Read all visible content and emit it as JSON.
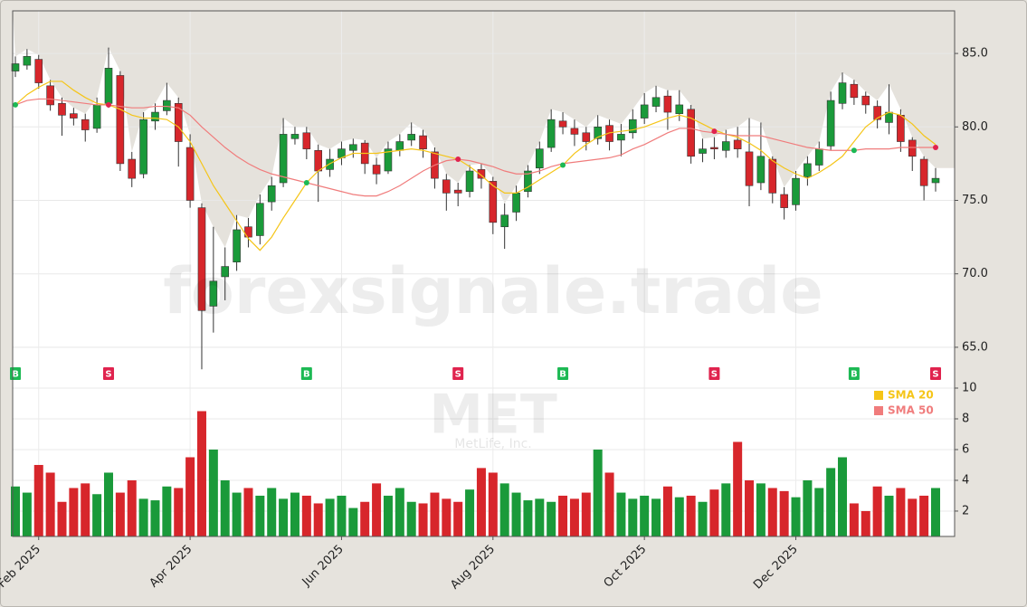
{
  "watermark": {
    "site": "forexsignale.trade",
    "ticker": "MET",
    "company": "MetLife, Inc."
  },
  "chart_data": [
    {
      "type": "candlestick",
      "up_color": "#1a9a3a",
      "down_color": "#d7262b",
      "area_color": "#e5e2dc",
      "buy_color": "#1db954",
      "sell_color": "#e0234e",
      "grid": true,
      "legend": "upper right",
      "ylim": [
        63.7,
        87.9
      ],
      "yticks": [
        {
          "value": 65,
          "label": "65.0"
        },
        {
          "value": 70,
          "label": "70.0"
        },
        {
          "value": 75,
          "label": "75.0"
        },
        {
          "value": 80,
          "label": "80.0"
        },
        {
          "value": 85,
          "label": "85.0"
        }
      ],
      "open": [
        83.8,
        84.2,
        84.6,
        82.8,
        81.6,
        80.9,
        80.5,
        79.9,
        81.6,
        83.5,
        77.8,
        76.8,
        80.4,
        81.1,
        81.6,
        78.6,
        74.5,
        67.8,
        69.8,
        70.8,
        73.2,
        72.6,
        74.9,
        76.2,
        79.2,
        79.6,
        78.4,
        77.1,
        77.9,
        78.4,
        78.9,
        77.4,
        77.0,
        78.4,
        79.1,
        79.4,
        78.3,
        76.4,
        75.7,
        75.6,
        77.1,
        76.3,
        73.2,
        74.2,
        75.6,
        77.2,
        78.6,
        80.4,
        79.9,
        79.6,
        79.2,
        80.1,
        79.1,
        79.6,
        80.6,
        81.4,
        82.1,
        80.9,
        81.2,
        78.2,
        78.6,
        78.4,
        79.1,
        78.3,
        76.2,
        77.8,
        75.4,
        74.7,
        76.6,
        77.4,
        78.7,
        81.6,
        82.9,
        82.1,
        81.4,
        80.3,
        80.8,
        79.1,
        77.8,
        76.2
      ],
      "high": [
        84.8,
        85.3,
        84.9,
        83.2,
        82.0,
        81.3,
        80.9,
        82.0,
        85.4,
        83.8,
        78.3,
        81.0,
        81.6,
        83.0,
        82.0,
        79.5,
        74.8,
        73.2,
        71.8,
        74.0,
        73.8,
        75.4,
        76.6,
        80.6,
        80.0,
        80.0,
        78.8,
        78.5,
        79.0,
        79.2,
        79.1,
        77.9,
        79.0,
        79.5,
        80.3,
        79.8,
        78.6,
        76.8,
        76.2,
        77.4,
        77.5,
        76.6,
        74.8,
        76.0,
        77.4,
        79.0,
        81.2,
        81.0,
        80.5,
        80.0,
        80.8,
        80.5,
        80.2,
        81.2,
        82.3,
        82.8,
        82.5,
        82.5,
        81.5,
        79.2,
        79.3,
        79.8,
        80.0,
        80.6,
        80.3,
        78.0,
        75.9,
        77.0,
        78.0,
        79.0,
        82.4,
        83.7,
        83.2,
        82.4,
        81.8,
        82.9,
        81.2,
        79.3,
        78.0,
        77.2
      ],
      "low": [
        83.4,
        83.9,
        82.6,
        81.1,
        79.4,
        80.1,
        79.0,
        79.6,
        81.3,
        77.0,
        75.9,
        76.5,
        79.8,
        80.8,
        77.3,
        74.5,
        63.5,
        66.0,
        68.2,
        70.2,
        71.8,
        72.0,
        74.3,
        75.9,
        78.8,
        77.8,
        74.9,
        76.6,
        77.4,
        77.9,
        76.8,
        76.1,
        76.8,
        78.0,
        78.7,
        77.9,
        75.8,
        74.3,
        74.6,
        75.2,
        75.8,
        72.7,
        71.7,
        73.6,
        75.2,
        76.8,
        78.3,
        79.5,
        78.7,
        78.4,
        78.8,
        78.4,
        78.0,
        79.2,
        80.2,
        81.0,
        79.8,
        80.4,
        77.5,
        77.6,
        77.8,
        77.9,
        77.9,
        74.6,
        75.7,
        74.8,
        73.7,
        74.3,
        76.0,
        77.0,
        78.4,
        81.2,
        81.5,
        80.9,
        79.9,
        79.5,
        78.3,
        77.0,
        75.0,
        75.6
      ],
      "close": [
        84.3,
        84.8,
        83.0,
        81.5,
        80.8,
        80.6,
        79.8,
        81.5,
        84.0,
        77.5,
        76.5,
        80.5,
        81.0,
        81.8,
        79.0,
        75.0,
        67.5,
        69.5,
        70.5,
        73.0,
        72.5,
        74.8,
        76.0,
        79.5,
        79.5,
        78.5,
        77.0,
        77.8,
        78.5,
        78.8,
        77.5,
        76.8,
        78.5,
        79.0,
        79.5,
        78.5,
        76.5,
        75.5,
        75.5,
        77.0,
        76.5,
        73.5,
        74.0,
        75.5,
        77.0,
        78.5,
        80.5,
        80.0,
        79.5,
        79.0,
        80.0,
        79.0,
        79.5,
        80.5,
        81.5,
        82.0,
        81.0,
        81.5,
        78.0,
        78.5,
        78.5,
        79.0,
        78.5,
        76.0,
        78.0,
        75.5,
        74.5,
        76.5,
        77.5,
        78.5,
        81.8,
        83.0,
        82.0,
        81.5,
        80.5,
        81.0,
        79.0,
        78.0,
        76.0,
        76.5
      ],
      "series": [
        {
          "name": "SMA 20",
          "color": "#f5c518",
          "values": [
            81.5,
            82.2,
            82.7,
            83.1,
            83.1,
            82.5,
            82.0,
            81.6,
            81.5,
            81.2,
            80.8,
            80.6,
            80.6,
            80.5,
            80.0,
            79.0,
            77.5,
            76.0,
            74.8,
            73.6,
            72.4,
            71.6,
            72.5,
            73.8,
            75.0,
            76.2,
            77.0,
            77.5,
            77.9,
            78.2,
            78.2,
            78.2,
            78.3,
            78.4,
            78.5,
            78.4,
            78.2,
            78.0,
            77.8,
            77.3,
            76.7,
            76.0,
            75.5,
            75.5,
            75.9,
            76.4,
            76.9,
            77.4,
            78.2,
            78.8,
            79.3,
            79.6,
            79.7,
            79.8,
            80.0,
            80.3,
            80.6,
            80.8,
            80.6,
            80.2,
            79.8,
            79.5,
            79.3,
            78.9,
            78.4,
            77.7,
            77.2,
            76.8,
            76.5,
            76.9,
            77.4,
            78.0,
            79.0,
            80.0,
            80.6,
            81.0,
            80.8,
            80.2,
            79.4,
            78.8
          ]
        },
        {
          "name": "SMA 50",
          "color": "#f07c7c",
          "values": [
            81.5,
            81.8,
            81.9,
            81.9,
            81.8,
            81.7,
            81.6,
            81.5,
            81.5,
            81.4,
            81.3,
            81.3,
            81.4,
            81.4,
            81.3,
            80.8,
            80.0,
            79.3,
            78.6,
            78.0,
            77.5,
            77.1,
            76.8,
            76.6,
            76.4,
            76.2,
            76.0,
            75.8,
            75.6,
            75.4,
            75.3,
            75.3,
            75.6,
            76.0,
            76.5,
            77.0,
            77.4,
            77.7,
            77.8,
            77.7,
            77.5,
            77.3,
            77.0,
            76.8,
            76.8,
            77.0,
            77.3,
            77.5,
            77.6,
            77.7,
            77.8,
            77.9,
            78.1,
            78.5,
            78.8,
            79.2,
            79.6,
            79.9,
            79.9,
            79.7,
            79.6,
            79.5,
            79.4,
            79.4,
            79.4,
            79.2,
            79.0,
            78.8,
            78.6,
            78.5,
            78.4,
            78.4,
            78.4,
            78.5,
            78.5,
            78.5,
            78.6,
            78.6,
            78.6,
            78.6
          ]
        }
      ],
      "signals": [
        "B",
        null,
        null,
        null,
        null,
        null,
        null,
        null,
        "S",
        null,
        null,
        null,
        null,
        null,
        null,
        null,
        null,
        null,
        null,
        null,
        null,
        null,
        null,
        null,
        null,
        "B",
        null,
        null,
        null,
        null,
        null,
        null,
        null,
        null,
        null,
        null,
        null,
        null,
        "S",
        null,
        null,
        null,
        null,
        null,
        null,
        null,
        null,
        "B",
        null,
        null,
        null,
        null,
        null,
        null,
        null,
        null,
        null,
        null,
        null,
        null,
        "S",
        null,
        null,
        null,
        null,
        null,
        null,
        null,
        null,
        null,
        null,
        null,
        "B",
        null,
        null,
        null,
        null,
        null,
        null,
        "S"
      ],
      "signal_values": [
        81.5,
        null,
        null,
        null,
        null,
        null,
        null,
        null,
        81.5,
        null,
        null,
        null,
        null,
        null,
        null,
        null,
        null,
        null,
        null,
        null,
        null,
        null,
        null,
        null,
        null,
        76.2,
        null,
        null,
        null,
        null,
        null,
        null,
        null,
        null,
        null,
        null,
        null,
        null,
        77.8,
        null,
        null,
        null,
        null,
        null,
        null,
        null,
        null,
        77.4,
        null,
        null,
        null,
        null,
        null,
        null,
        null,
        null,
        null,
        null,
        null,
        null,
        79.7,
        null,
        null,
        null,
        null,
        null,
        null,
        null,
        null,
        null,
        null,
        null,
        78.4,
        null,
        null,
        null,
        null,
        null,
        null,
        78.6
      ]
    },
    {
      "type": "bar",
      "grid": true,
      "ylim": [
        0.35,
        10.53
      ],
      "yticks": [
        2,
        4,
        6,
        8,
        10
      ],
      "categories": [
        null,
        null,
        "Feb 2025",
        null,
        null,
        null,
        null,
        null,
        null,
        null,
        null,
        null,
        null,
        null,
        null,
        "Apr 2025",
        null,
        null,
        null,
        null,
        null,
        null,
        null,
        null,
        null,
        null,
        null,
        null,
        "Jun 2025",
        null,
        null,
        null,
        null,
        null,
        null,
        null,
        null,
        null,
        null,
        null,
        null,
        "Aug 2025",
        null,
        null,
        null,
        null,
        null,
        null,
        null,
        null,
        null,
        null,
        null,
        null,
        "Oct 2025",
        null,
        null,
        null,
        null,
        null,
        null,
        null,
        null,
        null,
        null,
        null,
        null,
        "Dec 2025",
        null,
        null,
        null,
        null,
        null,
        null,
        null,
        null,
        null,
        null,
        null,
        null
      ],
      "values": [
        3.6,
        3.2,
        5.0,
        4.5,
        2.6,
        3.5,
        3.8,
        3.1,
        4.5,
        3.2,
        4.0,
        2.8,
        2.7,
        3.6,
        3.5,
        5.5,
        8.5,
        6.0,
        4.0,
        3.2,
        3.5,
        3.0,
        3.5,
        2.8,
        3.2,
        3.0,
        2.5,
        2.8,
        3.0,
        2.2,
        2.6,
        3.8,
        3.0,
        3.5,
        2.6,
        2.5,
        3.2,
        2.8,
        2.6,
        3.4,
        4.8,
        4.5,
        3.8,
        3.2,
        2.7,
        2.8,
        2.6,
        3.0,
        2.8,
        3.2,
        6.0,
        4.5,
        3.2,
        2.8,
        3.0,
        2.8,
        3.6,
        2.9,
        3.0,
        2.6,
        3.4,
        3.8,
        6.5,
        4.0,
        3.8,
        3.5,
        3.3,
        2.9,
        4.0,
        3.5,
        4.8,
        5.5,
        2.5,
        2.0,
        3.6,
        3.0,
        3.5,
        2.8,
        3.0,
        3.5
      ]
    }
  ]
}
